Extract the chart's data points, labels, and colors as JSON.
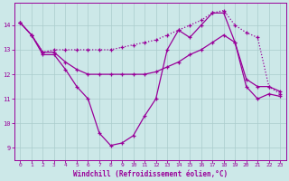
{
  "xlabel": "Windchill (Refroidissement éolien,°C)",
  "background_color": "#cce8e8",
  "line_color": "#990099",
  "grid_color": "#aacccc",
  "xlim": [
    -0.5,
    23.5
  ],
  "ylim": [
    8.5,
    14.9
  ],
  "xticks": [
    0,
    1,
    2,
    3,
    4,
    5,
    6,
    7,
    8,
    9,
    10,
    11,
    12,
    13,
    14,
    15,
    16,
    17,
    18,
    19,
    20,
    21,
    22,
    23
  ],
  "yticks": [
    9,
    10,
    11,
    12,
    13,
    14
  ],
  "line1_x": [
    0,
    1,
    2,
    3,
    4,
    5,
    6,
    7,
    8,
    9,
    10,
    11,
    12,
    13,
    14,
    15,
    16,
    17,
    18,
    19,
    20,
    21,
    22,
    23
  ],
  "line1_y": [
    14.1,
    13.6,
    12.8,
    12.8,
    12.2,
    11.5,
    11.0,
    9.6,
    9.1,
    9.2,
    9.5,
    10.3,
    11.0,
    13.0,
    13.8,
    13.5,
    14.0,
    14.5,
    14.5,
    13.3,
    11.5,
    11.0,
    11.2,
    11.1
  ],
  "line1_style": "-",
  "line2_x": [
    0,
    1,
    2,
    3,
    4,
    5,
    6,
    7,
    8,
    9,
    10,
    11,
    12,
    13,
    14,
    15,
    16,
    17,
    18,
    19,
    20,
    21,
    22,
    23
  ],
  "line2_y": [
    14.1,
    13.6,
    12.9,
    13.0,
    13.0,
    13.0,
    13.0,
    13.0,
    13.0,
    13.1,
    13.2,
    13.3,
    13.4,
    13.6,
    13.8,
    14.0,
    14.2,
    14.5,
    14.6,
    14.0,
    13.7,
    13.5,
    11.5,
    11.2
  ],
  "line2_style": ":",
  "line3_x": [
    0,
    1,
    2,
    3,
    4,
    5,
    6,
    7,
    8,
    9,
    10,
    11,
    12,
    13,
    14,
    15,
    16,
    17,
    18,
    19,
    20,
    21,
    22,
    23
  ],
  "line3_y": [
    14.1,
    13.6,
    12.9,
    12.9,
    12.5,
    12.2,
    12.0,
    12.0,
    12.0,
    12.0,
    12.0,
    12.0,
    12.1,
    12.3,
    12.5,
    12.8,
    13.0,
    13.3,
    13.6,
    13.3,
    11.8,
    11.5,
    11.5,
    11.3
  ],
  "line3_style": "-"
}
